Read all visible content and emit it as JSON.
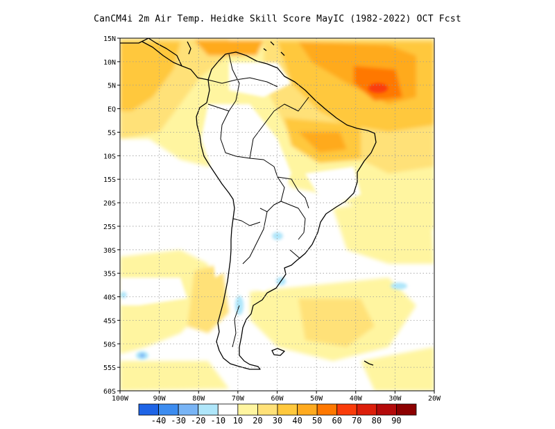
{
  "title": "CanCM4i  2m Air Temp. Heidke Skill Score MayIC (1982-2022) OCT Fcst",
  "map": {
    "lat_labels": [
      "15N",
      "10N",
      "5N",
      "EQ",
      "5S",
      "10S",
      "15S",
      "20S",
      "25S",
      "30S",
      "35S",
      "40S",
      "45S",
      "50S",
      "55S",
      "60S"
    ],
    "lon_labels": [
      "100W",
      "90W",
      "80W",
      "70W",
      "60W",
      "50W",
      "40W",
      "30W",
      "20W"
    ],
    "lat_values": [
      15,
      10,
      5,
      0,
      -5,
      -10,
      -15,
      -20,
      -25,
      -30,
      -35,
      -40,
      -45,
      -50,
      -55,
      -60
    ],
    "lon_values": [
      -100,
      -90,
      -80,
      -70,
      -60,
      -50,
      -40,
      -30,
      -20
    ],
    "grid": true,
    "grid_style": "dotted"
  },
  "colorbar": {
    "labels": [
      "-40",
      "-30",
      "-20",
      "-10",
      "10",
      "20",
      "30",
      "40",
      "50",
      "60",
      "70",
      "80",
      "90"
    ],
    "colors": [
      "#1e64e6",
      "#3c8cf0",
      "#78b4f5",
      "#afe6fa",
      "#ffffff",
      "#fff5a0",
      "#ffe178",
      "#ffc83c",
      "#ffaa1e",
      "#ff7800",
      "#fa3c0a",
      "#dc1e0a",
      "#b40a0a",
      "#8c0000"
    ]
  }
}
